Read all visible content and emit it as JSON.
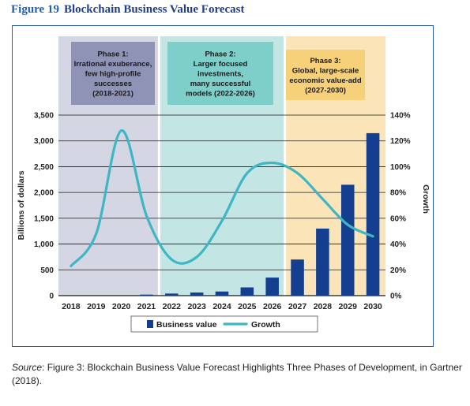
{
  "figure": {
    "number": "Figure 19",
    "title": "Blockchain Business Value Forecast"
  },
  "source": {
    "label": "Source",
    "text": ": Figure 3: Blockchain Business Value Forecast Highlights Three Phases of Development, in Gartner (2018)."
  },
  "colors": {
    "phase1": "#d4d6e3",
    "phase2": "#c3e6e4",
    "phase3": "#fbe5b8",
    "phase1_box": "#8f93b6",
    "phase2_box": "#7ecfca",
    "phase3_box": "#f7d07a",
    "bar": "#143f8f",
    "line": "#3fb6c4",
    "frame": "#2b5aa8"
  },
  "chart_data": {
    "type": "bar",
    "categories": [
      "2018",
      "2019",
      "2020",
      "2021",
      "2022",
      "2023",
      "2024",
      "2025",
      "2026",
      "2027",
      "2028",
      "2029",
      "2030"
    ],
    "series": [
      {
        "name": "Business value",
        "axis": "left",
        "values": [
          0,
          0,
          0,
          20,
          40,
          60,
          80,
          160,
          350,
          700,
          1300,
          2150,
          3150
        ]
      },
      {
        "name": "Growth",
        "axis": "right",
        "type": "line",
        "values": [
          23,
          48,
          128,
          62,
          28,
          30,
          58,
          95,
          103,
          95,
          75,
          55,
          46
        ]
      }
    ],
    "ylabel": "Billions of dollars",
    "ylim": [
      0,
      3500
    ],
    "yticks": [
      "0",
      "500",
      "1,000",
      "1,500",
      "2,000",
      "2,500",
      "3,000",
      "3,500"
    ],
    "y2label": "Growth",
    "y2lim": [
      0,
      140
    ],
    "y2ticks": [
      "0%",
      "20%",
      "40%",
      "60%",
      "80%",
      "100%",
      "120%",
      "140%"
    ],
    "grid": true,
    "legend_position": "bottom",
    "phases": [
      {
        "lines": [
          "Phase 1:",
          "Irrational exuberance,",
          "few high-profile",
          "successes",
          "(2018-2021)"
        ],
        "start": "2018",
        "end": "2021"
      },
      {
        "lines": [
          "Phase 2:",
          "Larger focused",
          "investments,",
          "many successful",
          "models (2022-2026)"
        ],
        "start": "2022",
        "end": "2026"
      },
      {
        "lines": [
          "Phase 3:",
          "Global, large-scale",
          "economic value-add",
          "(2027-2030)"
        ],
        "start": "2027",
        "end": "2030"
      }
    ]
  }
}
